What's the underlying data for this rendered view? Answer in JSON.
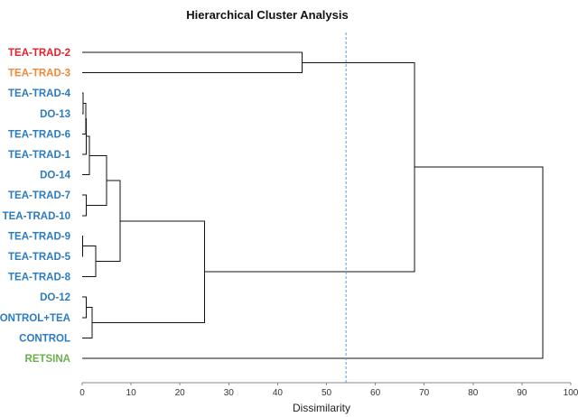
{
  "chart_data": {
    "type": "dendrogram",
    "title": "Hierarchical Cluster Analysis",
    "xlabel": "Dissimilarity",
    "xlim": [
      0,
      100
    ],
    "xticks": [
      "0",
      "10",
      "20",
      "30",
      "40",
      "50",
      "60",
      "70",
      "80",
      "90",
      "100"
    ],
    "cut_line": {
      "value": 54,
      "color": "#5b9bd5"
    },
    "leaves": [
      {
        "name": "TEA-TRAD-2",
        "color": "#e8202a"
      },
      {
        "name": "TEA-TRAD-3",
        "color": "#f0883a"
      },
      {
        "name": "TEA-TRAD-4",
        "color": "#2b7bc0"
      },
      {
        "name": "DO-13",
        "color": "#2b7bc0"
      },
      {
        "name": "TEA-TRAD-6",
        "color": "#2b7bc0"
      },
      {
        "name": "TEA-TRAD-1",
        "color": "#2b7bc0"
      },
      {
        "name": "DO-14",
        "color": "#2b7bc0"
      },
      {
        "name": "TEA-TRAD-7",
        "color": "#2b7bc0"
      },
      {
        "name": "TEA-TRAD-10",
        "color": "#2b7bc0"
      },
      {
        "name": "TEA-TRAD-9",
        "color": "#2b7bc0"
      },
      {
        "name": "TEA-TRAD-5",
        "color": "#2b7bc0"
      },
      {
        "name": "TEA-TRAD-8",
        "color": "#2b7bc0"
      },
      {
        "name": "DO-12",
        "color": "#2b7bc0"
      },
      {
        "name": "CONTROL+TEA",
        "color": "#2b7bc0"
      },
      {
        "name": "CONTROL",
        "color": "#2b7bc0"
      },
      {
        "name": "RETSINA",
        "color": "#6ab04c"
      }
    ],
    "merges": [
      {
        "id": "m1",
        "a": "TEA-TRAD-4",
        "b": "DO-13",
        "height": 0.2
      },
      {
        "id": "m2",
        "a": "m1",
        "b": "TEA-TRAD-6",
        "height": 0.7
      },
      {
        "id": "m3",
        "a": "m2",
        "b": "TEA-TRAD-1",
        "height": 0.8
      },
      {
        "id": "m4",
        "a": "m3",
        "b": "DO-14",
        "height": 1.5
      },
      {
        "id": "m5",
        "a": "TEA-TRAD-7",
        "b": "TEA-TRAD-10",
        "height": 0.8
      },
      {
        "id": "m6",
        "a": "m4",
        "b": "m5",
        "height": 5.0
      },
      {
        "id": "m7",
        "a": "TEA-TRAD-9",
        "b": "TEA-TRAD-5",
        "height": 0.1
      },
      {
        "id": "m8",
        "a": "m7",
        "b": "TEA-TRAD-8",
        "height": 2.8
      },
      {
        "id": "m9",
        "a": "m6",
        "b": "m8",
        "height": 7.8
      },
      {
        "id": "m10",
        "a": "DO-12",
        "b": "CONTROL+TEA",
        "height": 0.8
      },
      {
        "id": "m11",
        "a": "m10",
        "b": "CONTROL",
        "height": 2.0
      },
      {
        "id": "m12",
        "a": "m9",
        "b": "m11",
        "height": 25.0
      },
      {
        "id": "m13",
        "a": "TEA-TRAD-2",
        "b": "TEA-TRAD-3",
        "height": 45.0
      },
      {
        "id": "m14",
        "a": "m13",
        "b": "m12",
        "height": 68.0
      },
      {
        "id": "m15",
        "a": "m14",
        "b": "RETSINA",
        "height": 94.3
      }
    ]
  }
}
